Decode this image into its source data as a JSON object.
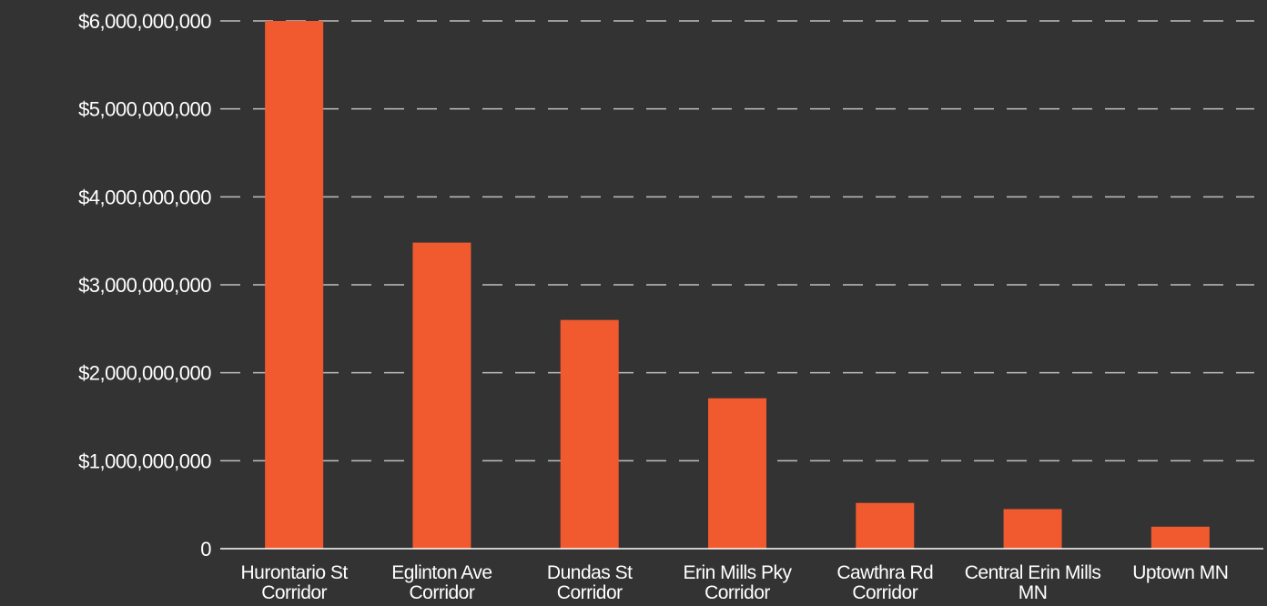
{
  "chart_data": {
    "type": "bar",
    "title": "",
    "xlabel": "",
    "ylabel": "",
    "categories": [
      [
        "Hurontario St",
        "Corridor"
      ],
      [
        "Eglinton Ave",
        "Corridor"
      ],
      [
        "Dundas St",
        "Corridor"
      ],
      [
        "Erin Mills Pky",
        "Corridor"
      ],
      [
        "Cawthra Rd",
        "Corridor"
      ],
      [
        "Central Erin Mills",
        "MN"
      ],
      [
        "Uptown MN"
      ]
    ],
    "values": [
      6000000000,
      3480000000,
      2600000000,
      1710000000,
      520000000,
      450000000,
      250000000
    ],
    "ylim": [
      0,
      6000000000
    ],
    "yticks": [
      {
        "value": 0,
        "label": "0"
      },
      {
        "value": 1000000000,
        "label": "$1,000,000,000"
      },
      {
        "value": 2000000000,
        "label": "$2,000,000,000"
      },
      {
        "value": 3000000000,
        "label": "$3,000,000,000"
      },
      {
        "value": 4000000000,
        "label": "$4,000,000,000"
      },
      {
        "value": 5000000000,
        "label": "$5,000,000,000"
      },
      {
        "value": 6000000000,
        "label": "$6,000,000,000"
      }
    ],
    "grid": true,
    "colors": {
      "bar": "#F15A2F",
      "background": "#333333",
      "text": "#FFFFFF",
      "grid": "#BFBFBF"
    }
  }
}
